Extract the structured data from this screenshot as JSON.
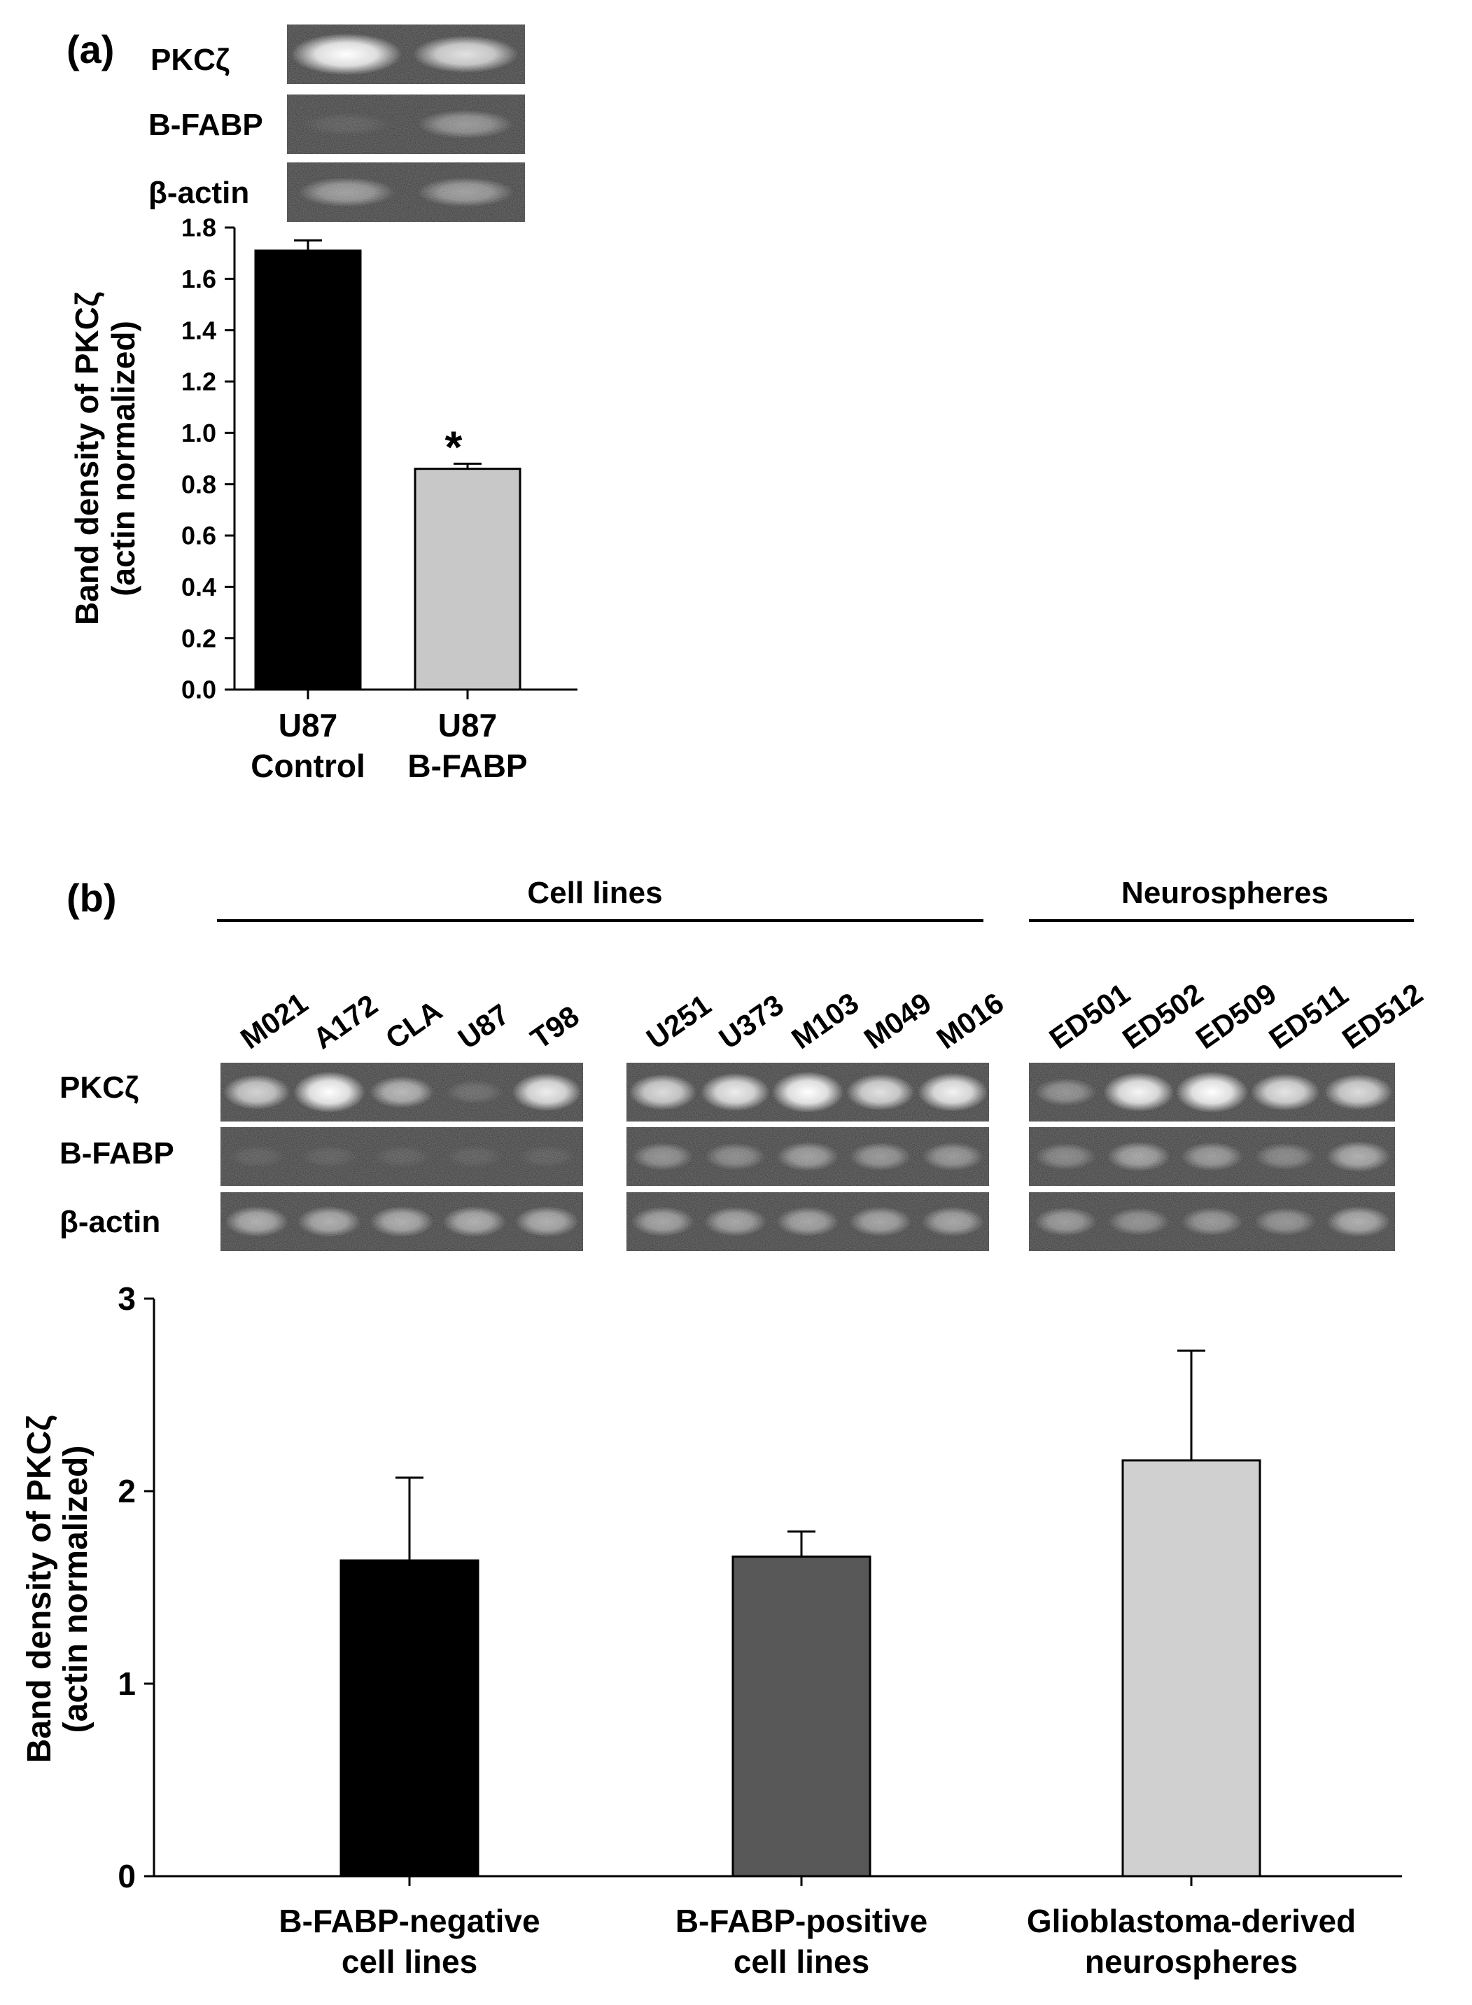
{
  "panel_a": {
    "label": "(a)",
    "blot_rows": [
      "PKCζ",
      "B-FABP",
      "β-actin"
    ],
    "blot_intensity": [
      [
        1.0,
        0.78
      ],
      [
        0.08,
        0.38
      ],
      [
        0.42,
        0.42
      ]
    ]
  },
  "panel_b": {
    "label": "(b)",
    "group_headers": [
      "Cell lines",
      "Neurospheres"
    ],
    "blot_rows": [
      "PKCζ",
      "B-FABP",
      "β-actin"
    ],
    "lanes": [
      [
        "M021",
        "A172",
        "CLA",
        "U87",
        "T98"
      ],
      [
        "U251",
        "U373",
        "M103",
        "M049",
        "M016"
      ],
      [
        "ED501",
        "ED502",
        "ED509",
        "ED511",
        "ED512"
      ]
    ],
    "blot_intensity": [
      [
        [
          0.7,
          1.0,
          0.55,
          0.15,
          0.85
        ],
        [
          0.08,
          0.08,
          0.08,
          0.08,
          0.08
        ],
        [
          0.5,
          0.5,
          0.5,
          0.5,
          0.5
        ]
      ],
      [
        [
          0.75,
          0.85,
          1.0,
          0.78,
          0.88
        ],
        [
          0.35,
          0.32,
          0.42,
          0.38,
          0.38
        ],
        [
          0.45,
          0.45,
          0.45,
          0.45,
          0.45
        ]
      ],
      [
        [
          0.35,
          0.9,
          1.0,
          0.8,
          0.75
        ],
        [
          0.3,
          0.45,
          0.4,
          0.3,
          0.5
        ],
        [
          0.4,
          0.35,
          0.38,
          0.36,
          0.5
        ]
      ]
    ]
  },
  "chart_data": [
    {
      "type": "bar",
      "title": "",
      "xlabel": "",
      "ylabel": "Band density of PKCζ (actin normalized)",
      "ylabel_lines": [
        "Band density of PKCζ",
        "(actin normalized)"
      ],
      "categories": [
        "U87 Control",
        "U87 B-FABP"
      ],
      "category_lines": [
        [
          "U87",
          "Control"
        ],
        [
          "U87",
          "B-FABP"
        ]
      ],
      "values": [
        1.71,
        0.86
      ],
      "errors": [
        0.04,
        0.02
      ],
      "colors": [
        "#000000",
        "#c8c8c8"
      ],
      "annotations": [
        "",
        "*"
      ],
      "ylim": [
        0,
        1.8
      ],
      "yticks": [
        "0.0",
        "0.2",
        "0.4",
        "0.6",
        "0.8",
        "1.0",
        "1.2",
        "1.4",
        "1.6",
        "1.8"
      ]
    },
    {
      "type": "bar",
      "title": "",
      "xlabel": "",
      "ylabel": "Band density of PKCζ (actin normalized)",
      "ylabel_lines": [
        "Band density of PKCζ",
        "(actin normalized)"
      ],
      "categories": [
        "B-FABP-negative cell lines",
        "B-FABP-positive cell lines",
        "Glioblastoma-derived neurospheres"
      ],
      "category_lines": [
        [
          "B-FABP-negative",
          "cell lines"
        ],
        [
          "B-FABP-positive",
          "cell lines"
        ],
        [
          "Glioblastoma-derived",
          "neurospheres"
        ]
      ],
      "values": [
        1.64,
        1.66,
        2.16
      ],
      "errors": [
        0.43,
        0.13,
        0.57
      ],
      "colors": [
        "#000000",
        "#585858",
        "#d0d0d0"
      ],
      "annotations": [
        "",
        "",
        ""
      ],
      "ylim": [
        0,
        3
      ],
      "yticks": [
        "0",
        "1",
        "2",
        "3"
      ]
    }
  ]
}
